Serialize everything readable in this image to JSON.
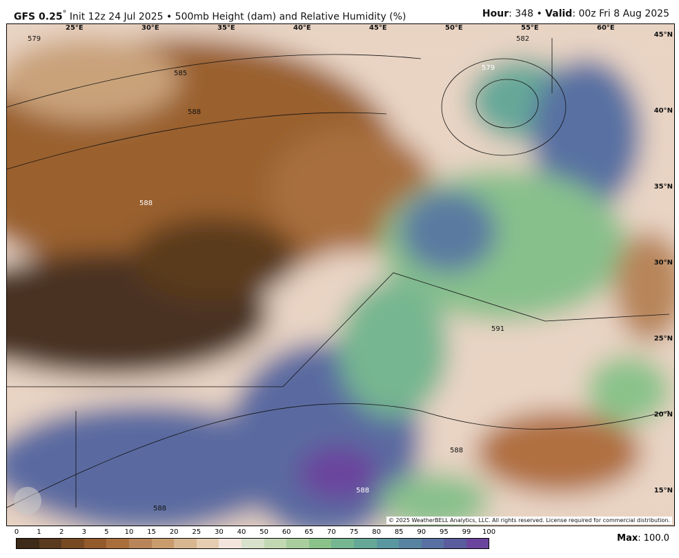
{
  "header": {
    "model": "GFS 0.25",
    "degree": "°",
    "init": " Init 12z 24 Jul 2025 • 500mb Height (dam) and Relative Humidity (%)",
    "hour_label": "Hour",
    "hour": ": 348 • ",
    "valid_label": "Valid",
    "valid": ": 00z Fri 8 Aug 2025"
  },
  "map": {
    "lon_labels": [
      "25°E",
      "30°E",
      "35°E",
      "40°E",
      "45°E",
      "50°E",
      "55°E",
      "60°E"
    ],
    "lat_labels": [
      "45°N",
      "40°N",
      "35°N",
      "30°N",
      "25°N",
      "20°N",
      "15°N"
    ],
    "contour_labels": [
      "579",
      "585",
      "588",
      "588",
      "582",
      "579",
      "591",
      "588",
      "588",
      "588"
    ],
    "copyright": "© 2025 WeatherBELL Analytics, LLC. All rights reserved. License required for commercial distribution.",
    "logo": "WeatherBELL"
  },
  "colorbar": {
    "ticks": [
      "0",
      "1",
      "2",
      "3",
      "5",
      "10",
      "15",
      "20",
      "25",
      "30",
      "40",
      "50",
      "60",
      "65",
      "70",
      "75",
      "80",
      "85",
      "90",
      "95",
      "99",
      "100"
    ],
    "colors": [
      "#3d2a18",
      "#5a3a1f",
      "#774a24",
      "#935a2c",
      "#a96e3c",
      "#b8855a",
      "#c99c6e",
      "#d7b690",
      "#e6ccb0",
      "#f3e5dd",
      "#d8e1cb",
      "#c2d8b3",
      "#aacd9e",
      "#8ac28a",
      "#76b690",
      "#66a898",
      "#5a97a0",
      "#5884a2",
      "#5871a2",
      "#5a5c9e",
      "#6b459d"
    ]
  },
  "max": {
    "label": "Max",
    "value": ": 100.0"
  }
}
